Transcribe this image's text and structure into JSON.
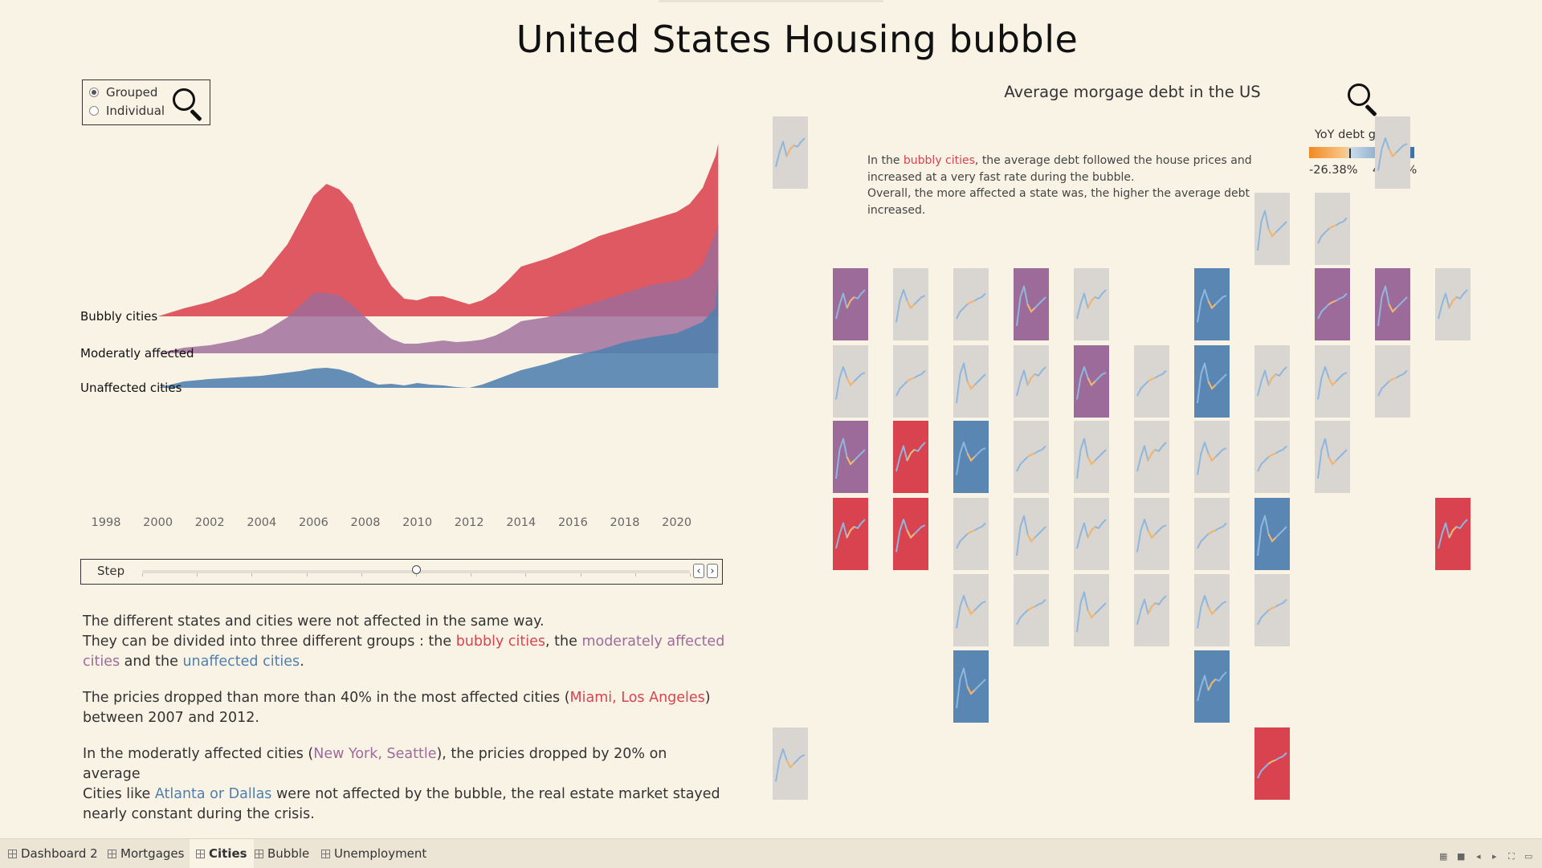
{
  "page": {
    "title": "United States Housing bubble"
  },
  "mode_selector": {
    "options": [
      {
        "label": "Grouped",
        "selected": true
      },
      {
        "label": "Individual",
        "selected": false
      }
    ]
  },
  "icons": {
    "zoom_left": "magnifier-icon",
    "zoom_right": "magnifier-icon"
  },
  "chart_data": [
    {
      "type": "area",
      "title": "",
      "xlabel": "",
      "ylabel": "",
      "x_ticks": [
        "1998",
        "2000",
        "2002",
        "2004",
        "2006",
        "2008",
        "2010",
        "2012",
        "2014",
        "2016",
        "2018",
        "2020"
      ],
      "xlim": [
        1997.5,
        2022
      ],
      "x": [
        2000,
        2001,
        2002,
        2003,
        2004,
        2005,
        2005.5,
        2006,
        2006.5,
        2007,
        2007.5,
        2008,
        2008.5,
        2009,
        2009.5,
        2010,
        2010.5,
        2011,
        2011.5,
        2012,
        2012.5,
        2013,
        2013.5,
        2014,
        2015,
        2016,
        2017,
        2018,
        2019,
        2020,
        2020.5,
        2021,
        2021.5,
        2021.6
      ],
      "series": [
        {
          "name": "Bubbly cities",
          "color": "#d9434f",
          "values": [
            0,
            10,
            18,
            30,
            50,
            90,
            120,
            150,
            165,
            158,
            140,
            100,
            65,
            38,
            22,
            20,
            25,
            25,
            20,
            15,
            20,
            30,
            45,
            62,
            72,
            85,
            100,
            110,
            120,
            130,
            140,
            160,
            200,
            215
          ]
        },
        {
          "name": "Moderatly affected",
          "color": "#9d6b9a",
          "values": [
            0,
            7,
            10,
            16,
            25,
            45,
            60,
            75,
            75,
            72,
            60,
            45,
            30,
            18,
            12,
            12,
            14,
            16,
            14,
            15,
            17,
            22,
            30,
            40,
            45,
            55,
            65,
            75,
            85,
            90,
            95,
            110,
            150,
            160
          ]
        },
        {
          "name": "Unaffected cities",
          "color": "#4f7fae",
          "values": [
            0,
            8,
            11,
            13,
            15,
            19,
            21,
            24,
            25,
            23,
            18,
            10,
            4,
            5,
            3,
            6,
            4,
            3,
            1,
            0,
            4,
            10,
            16,
            22,
            30,
            40,
            47,
            57,
            63,
            68,
            75,
            82,
            100,
            140
          ]
        }
      ]
    },
    {
      "type": "heatmap",
      "title": "Average morgage debt in the US",
      "legend_title": "YoY debt growth",
      "legend_min": "-26.38%",
      "legend_max": "44.08%",
      "colors": {
        "bubbly": "#d9434f",
        "moderate": "#9d6b9a",
        "unaffected": "#5a86b3",
        "none": "#d9d6d2"
      },
      "tiles": [
        {
          "col": 0,
          "row": 0,
          "g": "none"
        },
        {
          "col": 10,
          "row": 0,
          "g": "none"
        },
        {
          "col": 9,
          "row": 1,
          "g": "none"
        },
        {
          "col": 8,
          "row": 1,
          "g": "none"
        },
        {
          "col": 1,
          "row": 2,
          "g": "moderate"
        },
        {
          "col": 2,
          "row": 2,
          "g": "none"
        },
        {
          "col": 3,
          "row": 2,
          "g": "none"
        },
        {
          "col": 4,
          "row": 2,
          "g": "moderate"
        },
        {
          "col": 5,
          "row": 2,
          "g": "none"
        },
        {
          "col": 7,
          "row": 2,
          "g": "unaffected"
        },
        {
          "col": 9,
          "row": 2,
          "g": "moderate"
        },
        {
          "col": 10,
          "row": 2,
          "g": "moderate"
        },
        {
          "col": 11,
          "row": 2,
          "g": "none"
        },
        {
          "col": 1,
          "row": 3,
          "g": "none"
        },
        {
          "col": 2,
          "row": 3,
          "g": "none"
        },
        {
          "col": 3,
          "row": 3,
          "g": "none"
        },
        {
          "col": 4,
          "row": 3,
          "g": "none"
        },
        {
          "col": 5,
          "row": 3,
          "g": "moderate"
        },
        {
          "col": 6,
          "row": 3,
          "g": "none"
        },
        {
          "col": 7,
          "row": 3,
          "g": "unaffected"
        },
        {
          "col": 8,
          "row": 3,
          "g": "none"
        },
        {
          "col": 9,
          "row": 3,
          "g": "none"
        },
        {
          "col": 10,
          "row": 3,
          "g": "none"
        },
        {
          "col": 1,
          "row": 4,
          "g": "moderate"
        },
        {
          "col": 2,
          "row": 4,
          "g": "bubbly"
        },
        {
          "col": 3,
          "row": 4,
          "g": "unaffected"
        },
        {
          "col": 4,
          "row": 4,
          "g": "none"
        },
        {
          "col": 5,
          "row": 4,
          "g": "none"
        },
        {
          "col": 6,
          "row": 4,
          "g": "none"
        },
        {
          "col": 7,
          "row": 4,
          "g": "none"
        },
        {
          "col": 8,
          "row": 4,
          "g": "none"
        },
        {
          "col": 9,
          "row": 4,
          "g": "none"
        },
        {
          "col": 1,
          "row": 5,
          "g": "bubbly"
        },
        {
          "col": 2,
          "row": 5,
          "g": "bubbly"
        },
        {
          "col": 3,
          "row": 5,
          "g": "none"
        },
        {
          "col": 4,
          "row": 5,
          "g": "none"
        },
        {
          "col": 5,
          "row": 5,
          "g": "none"
        },
        {
          "col": 6,
          "row": 5,
          "g": "none"
        },
        {
          "col": 7,
          "row": 5,
          "g": "none"
        },
        {
          "col": 8,
          "row": 5,
          "g": "unaffected"
        },
        {
          "col": 11,
          "row": 5,
          "g": "bubbly"
        },
        {
          "col": 3,
          "row": 6,
          "g": "none"
        },
        {
          "col": 4,
          "row": 6,
          "g": "none"
        },
        {
          "col": 5,
          "row": 6,
          "g": "none"
        },
        {
          "col": 6,
          "row": 6,
          "g": "none"
        },
        {
          "col": 7,
          "row": 6,
          "g": "none"
        },
        {
          "col": 8,
          "row": 6,
          "g": "none"
        },
        {
          "col": 3,
          "row": 7,
          "g": "unaffected"
        },
        {
          "col": 7,
          "row": 7,
          "g": "unaffected"
        },
        {
          "col": 0,
          "row": 8,
          "g": "none"
        },
        {
          "col": 8,
          "row": 8,
          "g": "bubbly"
        }
      ]
    }
  ],
  "step": {
    "label": "Step",
    "position": 0.5,
    "prev": "‹",
    "next": "›"
  },
  "explain": {
    "p1_a": "The different states and cities were not affected in the same way.",
    "p1_b": "They can be divided into three different groups : the ",
    "p1_bubbly": "bubbly cities",
    "p1_c": ", the ",
    "p1_moderate": "moderately affected cities",
    "p1_d": " and the ",
    "p1_unaffected": "unaffected cities",
    "p1_e": ".",
    "p2_a": "The pricies dropped than more than 40% in the most affected cities (",
    "p2_cities": "Miami, Los Angeles",
    "p2_b": ") between 2007 and 2012.",
    "p3_a": "In the moderatly affected cities (",
    "p3_cities": "New York, Seattle",
    "p3_b": "), the pricies dropped by 20% on average",
    "p3_c": "Cities like ",
    "p3_cities2": "Atlanta or Dallas",
    "p3_d": " were not affected by the bubble, the real estate market stayed nearly constant during the crisis."
  },
  "mortgage_note": {
    "a": "In the ",
    "bubbly": "bubbly cities",
    "b": ", the average debt followed the house prices and increased at a very fast rate during the bubble.",
    "c": "Overall, the more affected a state was, the higher the average debt increased."
  },
  "tabs": [
    {
      "label": "Dashboard 2",
      "active": false
    },
    {
      "label": "Mortgages",
      "active": false
    },
    {
      "label": "Cities",
      "active": true
    },
    {
      "label": "Bubble",
      "active": false
    },
    {
      "label": "Unemployment",
      "active": false
    }
  ]
}
